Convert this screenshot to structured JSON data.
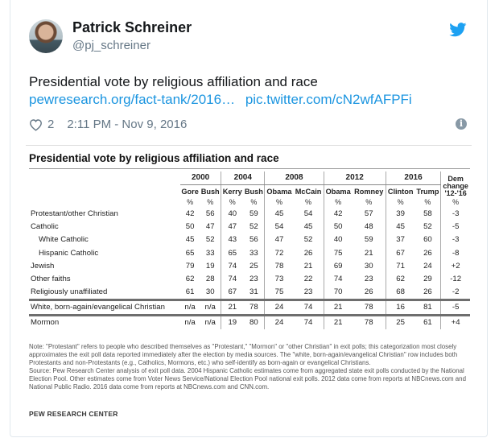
{
  "user": {
    "name": "Patrick Schreiner",
    "handle": "@pj_schreiner"
  },
  "tweet": {
    "text": "Presidential vote by religious affiliation and race",
    "link1": "pewresearch.org/fact-tank/2016…",
    "link2": "pic.twitter.com/cN2wfAFPFi",
    "likes": "2",
    "time": "2:11 PM - Nov 9, 2016",
    "info_glyph": "i"
  },
  "colors": {
    "link": "#1b95e0",
    "twitter_blue": "#1da1f2",
    "meta": "#657786"
  },
  "icons": [
    "twitter-bird-icon",
    "heart-icon",
    "info-icon"
  ],
  "figure": {
    "title": "Presidential vote by religious affiliation and race",
    "years": [
      "2000",
      "2004",
      "2008",
      "2012",
      "2016"
    ],
    "dem_change_line1": "Dem",
    "dem_change_line2": "change",
    "dem_change_line3": "'12-'16",
    "candidates": [
      "Gore",
      "Bush",
      "Kerry",
      "Bush",
      "Obama",
      "McCain",
      "Obama",
      "Romney",
      "Clinton",
      "Trump"
    ],
    "pct_sign": "%",
    "rows": [
      {
        "label": "Protestant/other Christian",
        "values": [
          "42",
          "56",
          "40",
          "59",
          "45",
          "54",
          "42",
          "57",
          "39",
          "58"
        ],
        "change": "-3"
      },
      {
        "label": "Catholic",
        "values": [
          "50",
          "47",
          "47",
          "52",
          "54",
          "45",
          "50",
          "48",
          "45",
          "52"
        ],
        "change": "-5"
      },
      {
        "label": "White Catholic",
        "values": [
          "45",
          "52",
          "43",
          "56",
          "47",
          "52",
          "40",
          "59",
          "37",
          "60"
        ],
        "change": "-3"
      },
      {
        "label": "Hispanic Catholic",
        "values": [
          "65",
          "33",
          "65",
          "33",
          "72",
          "26",
          "75",
          "21",
          "67",
          "26"
        ],
        "change": "-8"
      },
      {
        "label": "Jewish",
        "values": [
          "79",
          "19",
          "74",
          "25",
          "78",
          "21",
          "69",
          "30",
          "71",
          "24"
        ],
        "change": "+2"
      },
      {
        "label": "Other faiths",
        "values": [
          "62",
          "28",
          "74",
          "23",
          "73",
          "22",
          "74",
          "23",
          "62",
          "29"
        ],
        "change": "-12"
      },
      {
        "label": "Religiously unaffiliated",
        "values": [
          "61",
          "30",
          "67",
          "31",
          "75",
          "23",
          "70",
          "26",
          "68",
          "26"
        ],
        "change": "-2"
      },
      {
        "label": "White, born-again/evangelical Christian",
        "values": [
          "n/a",
          "n/a",
          "21",
          "78",
          "24",
          "74",
          "21",
          "78",
          "16",
          "81"
        ],
        "change": "-5"
      },
      {
        "label": "Mormon",
        "values": [
          "n/a",
          "n/a",
          "19",
          "80",
          "24",
          "74",
          "21",
          "78",
          "25",
          "61"
        ],
        "change": "+4"
      }
    ],
    "note": "Note: \"Protestant\" refers to people who described themselves as \"Protestant,\" \"Mormon\" or \"other Christian\" in exit polls; this categorization most closely approximates the exit poll data reported immediately after the election by media sources. The \"white, born-again/evangelical Christian\" row includes both Protestants and non-Protestants (e.g., Catholics, Mormons, etc.) who self-identify as born-again or evangelical Christians.",
    "source": "Source: Pew Research Center analysis of exit poll data. 2004 Hispanic Catholic estimates come from aggregated state exit polls conducted by the National Election Pool. Other estimates come from Voter News Service/National Election Pool national exit polls. 2012 data come from reports at NBCnews.com and National Public Radio. 2016 data come from reports at NBCnews.com and CNN.com.",
    "footer": "PEW RESEARCH CENTER"
  }
}
